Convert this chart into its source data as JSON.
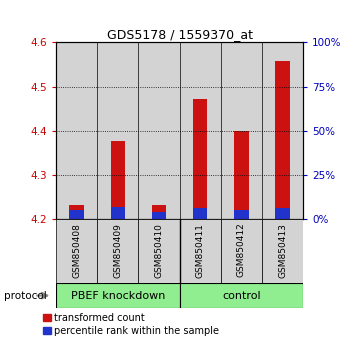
{
  "title": "GDS5178 / 1559370_at",
  "samples": [
    "GSM850408",
    "GSM850409",
    "GSM850410",
    "GSM850411",
    "GSM850412",
    "GSM850413"
  ],
  "group_labels": [
    "PBEF knockdown",
    "control"
  ],
  "baseline": 4.2,
  "red_tops": [
    4.232,
    4.378,
    4.232,
    4.472,
    4.4,
    4.558
  ],
  "blue_tops": [
    4.222,
    4.228,
    4.218,
    4.226,
    4.222,
    4.226
  ],
  "bar_width": 0.35,
  "ylim": [
    4.2,
    4.6
  ],
  "yticks_left": [
    4.2,
    4.3,
    4.4,
    4.5,
    4.6
  ],
  "yticks_right": [
    0,
    25,
    50,
    75,
    100
  ],
  "left_tick_color": "#cc0000",
  "right_tick_color": "#0000bb",
  "bar_color_red": "#cc1111",
  "bar_color_blue": "#2233cc",
  "panel_bg_color": "#d3d3d3",
  "plot_bg_color": "#ffffff",
  "group1_color": "#90EE90",
  "group2_color": "#90EE90",
  "protocol_label": "protocol",
  "legend_red": "transformed count",
  "legend_blue": "percentile rank within the sample",
  "title_fontsize": 9,
  "tick_fontsize": 7.5,
  "sample_fontsize": 6.5,
  "group_fontsize": 8,
  "legend_fontsize": 7
}
